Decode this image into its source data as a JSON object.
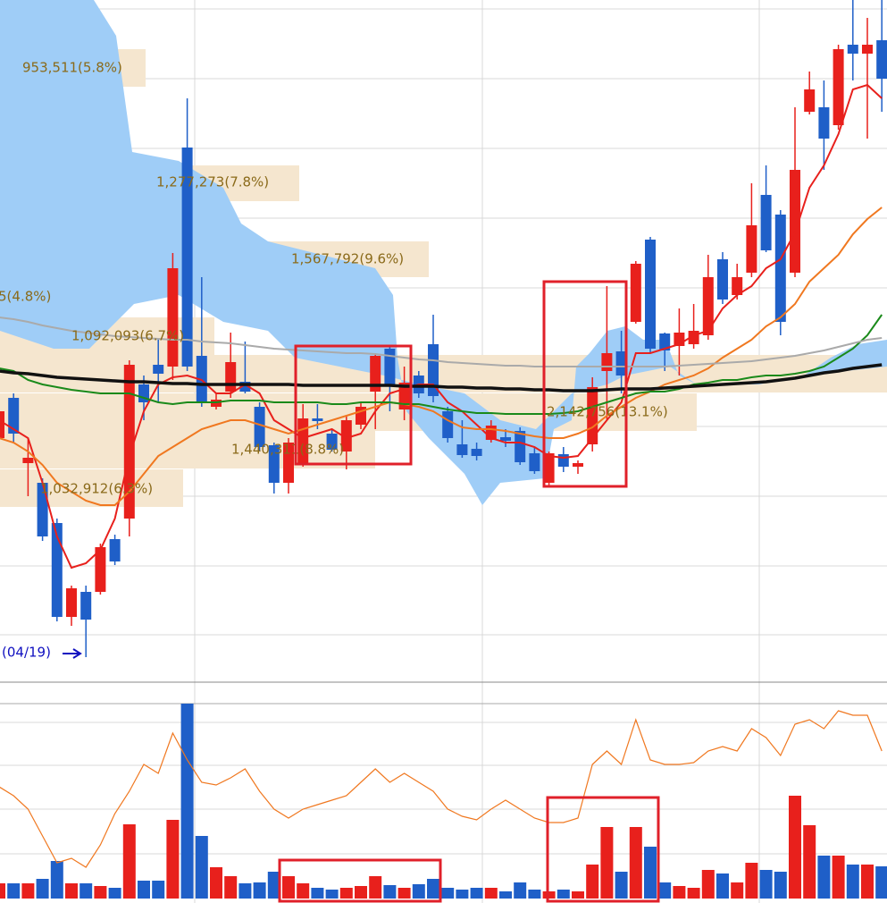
{
  "chart_data": [
    {
      "type": "candlestick",
      "ylim": [
        0,
        760
      ],
      "up_color": "#e8201c",
      "down_color": "#1f5fc8",
      "open": [
        270,
        315,
        242,
        220,
        175,
        70,
        98,
        98,
        157,
        180,
        330,
        352,
        350,
        595,
        362,
        305,
        322,
        333,
        305,
        262,
        220,
        240,
        292,
        275,
        255,
        285,
        322,
        370,
        302,
        340,
        375,
        300,
        263,
        258,
        268,
        271,
        278,
        253,
        220,
        252,
        238,
        263,
        345,
        367,
        400,
        492,
        387,
        373,
        375,
        385,
        470,
        430,
        455,
        542,
        520,
        455,
        635,
        640,
        620,
        710,
        700,
        715
      ],
      "high": [
        305,
        320,
        270,
        225,
        180,
        105,
        105,
        152,
        162,
        357,
        340,
        380,
        477,
        650,
        450,
        320,
        388,
        378,
        310,
        265,
        270,
        308,
        308,
        280,
        295,
        310,
        365,
        372,
        350,
        345,
        408,
        305,
        290,
        265,
        290,
        280,
        282,
        260,
        255,
        260,
        245,
        338,
        440,
        390,
        468,
        495,
        388,
        415,
        420,
        475,
        478,
        465,
        555,
        575,
        525,
        640,
        680,
        670,
        710,
        760,
        740,
        760
      ],
      "low": [
        260,
        265,
        205,
        155,
        65,
        60,
        25,
        95,
        128,
        160,
        290,
        310,
        335,
        345,
        305,
        302,
        315,
        320,
        255,
        208,
        208,
        238,
        280,
        255,
        235,
        280,
        280,
        300,
        290,
        315,
        310,
        265,
        248,
        245,
        265,
        260,
        240,
        230,
        215,
        232,
        230,
        255,
        290,
        320,
        398,
        365,
        345,
        340,
        370,
        380,
        420,
        425,
        450,
        478,
        385,
        450,
        632,
        570,
        615,
        670,
        605,
        635
      ],
      "close": [
        300,
        275,
        248,
        160,
        70,
        102,
        67,
        148,
        132,
        352,
        310,
        342,
        460,
        350,
        310,
        313,
        355,
        322,
        260,
        220,
        265,
        292,
        289,
        257,
        290,
        305,
        362,
        330,
        332,
        320,
        317,
        270,
        251,
        250,
        284,
        267,
        243,
        233,
        253,
        238,
        242,
        327,
        365,
        340,
        465,
        370,
        368,
        388,
        390,
        450,
        425,
        450,
        508,
        480,
        400,
        570,
        660,
        605,
        705,
        700,
        710,
        672
      ],
      "series": [
        {
          "color": "#e8201c",
          "values": [
            290,
            280,
            270,
            220,
            160,
            125,
            130,
            145,
            180,
            250,
            300,
            330,
            338,
            340,
            335,
            320,
            320,
            330,
            320,
            290,
            280,
            270,
            275,
            280,
            270,
            275,
            300,
            320,
            325,
            330,
            330,
            310,
            300,
            285,
            270,
            265,
            265,
            260,
            250,
            248,
            250,
            270,
            290,
            310,
            365,
            365,
            370,
            375,
            385,
            390,
            415,
            430,
            440,
            460,
            470,
            500,
            550,
            575,
            610,
            660,
            665,
            650
          ]
        },
        {
          "color": "#f07820",
          "values": [
            270,
            265,
            255,
            240,
            220,
            210,
            200,
            195,
            195,
            210,
            230,
            250,
            260,
            270,
            280,
            285,
            290,
            290,
            285,
            280,
            275,
            280,
            285,
            290,
            295,
            300,
            305,
            310,
            308,
            305,
            300,
            290,
            282,
            280,
            280,
            278,
            275,
            272,
            270,
            270,
            275,
            282,
            295,
            305,
            315,
            322,
            330,
            335,
            340,
            348,
            360,
            370,
            380,
            395,
            405,
            420,
            445,
            460,
            475,
            498,
            515,
            528
          ]
        },
        {
          "color": "#1a8a1a",
          "values": [
            348,
            345,
            335,
            330,
            327,
            324,
            322,
            320,
            320,
            320,
            315,
            310,
            308,
            310,
            310,
            310,
            312,
            312,
            312,
            310,
            310,
            310,
            310,
            308,
            308,
            310,
            310,
            310,
            308,
            308,
            305,
            302,
            300,
            298,
            298,
            297,
            297,
            297,
            297,
            298,
            300,
            305,
            310,
            315,
            320,
            322,
            322,
            325,
            330,
            332,
            335,
            335,
            338,
            340,
            340,
            342,
            345,
            350,
            360,
            370,
            385,
            408
          ]
        },
        {
          "color": "#aaaaaa",
          "values": [
            405,
            403,
            400,
            396,
            393,
            390,
            388,
            386,
            384,
            383,
            382,
            381,
            380,
            380,
            378,
            377,
            376,
            374,
            372,
            370,
            369,
            368,
            367,
            366,
            365,
            365,
            364,
            362,
            360,
            358,
            357,
            355,
            354,
            353,
            352,
            351,
            351,
            350,
            350,
            350,
            350,
            350,
            350,
            350,
            350,
            350,
            350,
            351,
            352,
            353,
            354,
            355,
            356,
            358,
            360,
            362,
            365,
            368,
            372,
            376,
            380,
            382
          ]
        },
        {
          "color": "#111111",
          "values": [
            345,
            343,
            342,
            340,
            338,
            337,
            336,
            335,
            334,
            333,
            333,
            332,
            331,
            331,
            330,
            330,
            330,
            330,
            330,
            330,
            330,
            329,
            329,
            329,
            329,
            329,
            329,
            329,
            328,
            328,
            328,
            327,
            327,
            326,
            326,
            325,
            325,
            324,
            324,
            323,
            323,
            323,
            324,
            325,
            325,
            325,
            326,
            327,
            328,
            329,
            330,
            331,
            332,
            333,
            335,
            337,
            340,
            343,
            345,
            348,
            350,
            352
          ]
        }
      ],
      "annotations": [
        "953,511(5.8%)",
        "1,277,273(7.8%)",
        "1,567,792(9.6%)",
        "5(4.8%)",
        "1,092,093(6.7%)",
        "1,440,311(8.8%)",
        "1,032,912(6.3%)",
        "2,142,756(13.1%)",
        "(04/19)"
      ]
    },
    {
      "type": "bar",
      "ylim": [
        0,
        218
      ],
      "values": [
        17,
        17,
        17,
        22,
        42,
        17,
        17,
        14,
        12,
        83,
        20,
        20,
        88,
        218,
        70,
        35,
        25,
        17,
        18,
        30,
        25,
        17,
        12,
        10,
        12,
        14,
        25,
        15,
        12,
        16,
        22,
        12,
        10,
        12,
        12,
        8,
        18,
        10,
        8,
        10,
        8,
        38,
        80,
        30,
        80,
        58,
        18,
        14,
        12,
        32,
        28,
        18,
        40,
        32,
        30,
        115,
        82,
        48,
        48,
        38,
        38,
        36
      ],
      "line": {
        "color": "#f07820",
        "values": [
          125,
          115,
          100,
          70,
          40,
          45,
          35,
          60,
          95,
          120,
          150,
          140,
          185,
          155,
          130,
          127,
          135,
          145,
          120,
          100,
          90,
          100,
          105,
          110,
          115,
          130,
          145,
          130,
          140,
          130,
          120,
          100,
          92,
          88,
          100,
          110,
          100,
          90,
          85,
          85,
          90,
          150,
          165,
          150,
          200,
          155,
          150,
          150,
          152,
          165,
          170,
          165,
          190,
          180,
          160,
          195,
          200,
          190,
          210,
          205,
          205,
          165
        ]
      }
    }
  ]
}
